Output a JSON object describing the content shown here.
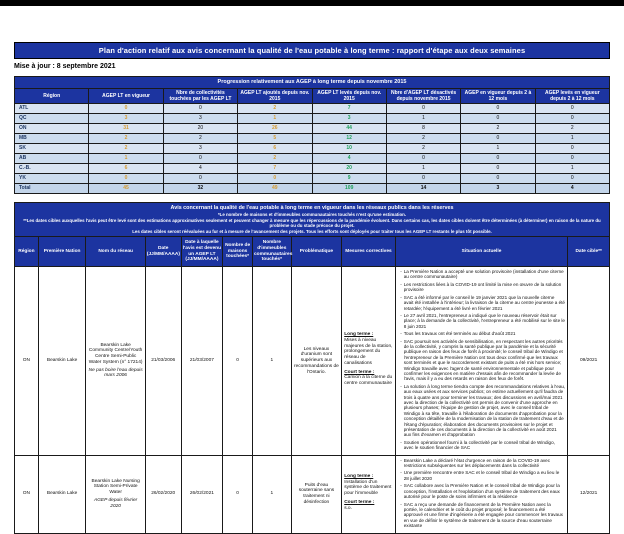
{
  "header": {
    "title": "Plan d'action relatif aux avis concernant la qualité de l'eau potable à long terme : rapport d'étape aux deux semaines",
    "updated": "Mise à jour : 8 septembre 2021"
  },
  "colors": {
    "banner_blue": "#1c34a0",
    "row_fill": "#d9e4f2",
    "orange_value": "#d79b2f",
    "green_value": "#1fa05a"
  },
  "table1": {
    "banner": "Progression relativement aux AGEP à long terme depuis novembre 2015",
    "columns": [
      "Région",
      "AGEP LT en vigueur",
      "Nbre de collectivités touchées par les AGEP LT",
      "AGEP LT ajoutés depuis nov. 2015",
      "AGEP LT levés depuis nov. 2015",
      "Nbre d'AGEP LT désactivés depuis novembre 2015",
      "AGEP en vigueur depuis 2 à 12 mois",
      "AGEP levés en vigueur depuis 2 à 12 mois"
    ],
    "rows": [
      {
        "region": "ATL",
        "values": [
          "0",
          "0",
          "2",
          "7",
          "0",
          "0",
          "0"
        ]
      },
      {
        "region": "QC",
        "values": [
          "3",
          "3",
          "1",
          "3",
          "1",
          "0",
          "0"
        ]
      },
      {
        "region": "ON",
        "values": [
          "31",
          "20",
          "26",
          "44",
          "8",
          "2",
          "2"
        ]
      },
      {
        "region": "MB",
        "values": [
          "2",
          "2",
          "5",
          "12",
          "2",
          "0",
          "1"
        ]
      },
      {
        "region": "SK",
        "values": [
          "2",
          "3",
          "6",
          "10",
          "2",
          "1",
          "0"
        ]
      },
      {
        "region": "AB",
        "values": [
          "1",
          "0",
          "2",
          "4",
          "0",
          "0",
          "0"
        ]
      },
      {
        "region": "C.-B.",
        "values": [
          "6",
          "4",
          "7",
          "20",
          "1",
          "0",
          "1"
        ]
      },
      {
        "region": "YK",
        "values": [
          "0",
          "0",
          "0",
          "9",
          "0",
          "0",
          "0"
        ]
      }
    ],
    "total": {
      "region": "Total",
      "values": [
        "45",
        "32",
        "49",
        "109",
        "14",
        "3",
        "4"
      ]
    }
  },
  "table2": {
    "banner_lines": [
      "Avis concernant la qualité de l'eau potable à long terme en vigueur dans les réseaux publics dans les réserves",
      "*Le nombre de maisons et d'immeubles communautaires touchés n'est qu'une estimation.",
      "**Les dates cibles auxquelles l'avis peut être levé sont des estimations approximatives seulement et peuvent changer à mesure que les répercussions de la pandémie évoluent. Dans certains cas, les dates cibles doivent être déterminées (à déterminer) en raison de la nature du problème ou du stade précoce du projet.",
      "Les dates cibles seront réévaluées au fur et à mesure de l'avancement des projets. Tous les efforts sont déployés pour traiter tous les AGEP LT restants le plus tôt possible."
    ],
    "columns": [
      "Région",
      "Première Nation",
      "Nom du réseau",
      "Date (JJ/MM/AAAA)",
      "Date à laquelle l'avis est devenu un AGEP LT (JJ/MM/AAAA)",
      "Nombre de maisons touchées*",
      "Nombre d'immeubles communautaires touchés*",
      "Problématique",
      "Mesures correctives",
      "Situation actuelle",
      "Date cible**"
    ],
    "rows": [
      {
        "region": "ON",
        "first_nation": "Bearskin Lake",
        "network_name": "Bearskin Lake Community Centre/Youth Centre Semi-Public Water System (n° 17214)",
        "network_note": "Ne pas boire l'eau depuis mars 2006",
        "date": "21/03/2006",
        "date_lt": "21/03/2007",
        "homes": "0",
        "buildings": "1",
        "problem": "Les niveaux d'uranium sont supérieurs aux recommandations de l'Ontario.",
        "measures": {
          "long_label": "Long terme :",
          "long_text": "Mises à niveau majeures de la station, prolongement du réseau de canalisations",
          "short_label": "Court terme :",
          "short_text": "Camion à la citerne du centre communautaire"
        },
        "situation": [
          "La Première Nation a accepté une solution provisoire (installation d'une citerne au centre communautaire)",
          "Les restrictions liées à la COVID-19 ont limité la mise en œuvre de la solution provisoire",
          "SAC a été informé par le conseil le 19 janvier 2021 que la nouvelle citerne avait été installée à l'intérieur; la livraison de la citerne au centre jeunesse a été retardée; l'équipement a été livré en février 2021",
          "Le 27 avril 2021, l'entrepreneur a indiqué que le nouveau réservoir était sur place; à la demande de la collectivité, l'entrepreneur a été mobilisé sur le site le 8 juin 2021",
          "Tous les travaux ont été terminés au début d'août 2021",
          "SAC poursuit ses activités de sensibilisation, en respectant les autres priorités de la collectivité, y compris la santé publique par la pandémie et la sécurité publique en raison des feux de forêt à proximité; le conseil tribal de Windigo et l'entrepreneur de la Première Nation ont tous deux confirmé que les travaux sont terminés et que le raccordement existant de puits a été mis hors service; Windigo travaille avec l'agent de santé environnementale et publique pour confirmer les exigences en matière d'essais afin de recommander la levée de l'avis, mais il y a eu des retards en raison des feux de forêt.",
          "La solution à long terme tiendra compte des recommandations relatives à l'eau, aux eaux usées et aux services publics; on estime actuellement qu'il faudra de trois à quatre ans pour terminer les travaux; des discussions en avril/mai 2021 avec la direction de la collectivité ont permis de convenir d'une approche en plusieurs phases; l'équipe de gestion de projet, avec le conseil tribal de Windigo à sa tête, travaille à l'élaboration de documents d'approbation pour la conception détaillée de la modernisation de la station de traitement d'eau et de l'étang d'épuration; élaboration des documents provisoires sur le projet et présentation de ces documents à la direction de la collectivité en août 2021 aux fins d'examen et d'approbation",
          "Soutien opérationnel fourni à la collectivité par le conseil tribal de Windigo, avec le soutien financier de SAC"
        ],
        "target_date": "09/2021"
      },
      {
        "region": "ON",
        "first_nation": "Bearskin Lake",
        "network_name": "Bearskin Lake Nursing Station Semi-Private Water",
        "network_note": "AGEP depuis février 2020",
        "date": "26/02/2020",
        "date_lt": "26/02/2021",
        "homes": "0",
        "buildings": "1",
        "problem": "Puits d'eau souterraine sans traitement ni désinfection",
        "measures": {
          "long_label": "Long terme :",
          "long_text": "Installation d'un système de traitement pour l'immeuble",
          "short_label": "Court terme :",
          "short_text": "s.o."
        },
        "situation": [
          "Bearskin Lake a déclaré l'état d'urgence en raison de la COVID-19 avec restrictions subséquentes sur les déplacements dans la collectivité",
          "Une première rencontre entre SAC et le conseil tribal de Windigo a eu lieu le 28 juillet 2020",
          "SAC collabore avec la Première Nation et le conseil tribal de Windigo pour la conception, l'installation et l'exploitation d'un système de traitement des eaux autorisé pour le poste de soins infirmiers et la résidence",
          "SAC a reçu une demande de financement de la Première Nation avec la portée, le calendrier et le coût du projet proposé; le financement a été approuvé et une firme d'ingénierie a été engagée pour commencer les travaux en vue de définir le système de traitement de la source d'eau souterraine existante"
        ],
        "target_date": "12/2021"
      }
    ]
  }
}
